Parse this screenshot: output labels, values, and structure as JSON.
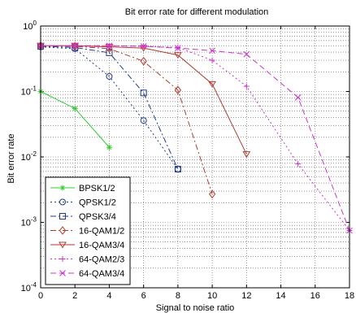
{
  "chart_data": {
    "type": "line",
    "title": "Bit error rate for different modulation",
    "xlabel": "Signal to noise ratio",
    "ylabel": "Bit error rate",
    "xlim": [
      0,
      18
    ],
    "ylim": [
      0.0001,
      1
    ],
    "yscale": "log",
    "grid": "major and minor, dotted",
    "legend_position": "bottom-left",
    "x_ticks": [
      "0",
      "2",
      "4",
      "6",
      "8",
      "10",
      "12",
      "14",
      "16",
      "18"
    ],
    "y_ticks": [
      {
        "base": "10",
        "exp": "0"
      },
      {
        "base": "10",
        "exp": "-1"
      },
      {
        "base": "10",
        "exp": "-2"
      },
      {
        "base": "10",
        "exp": "-3"
      },
      {
        "base": "10",
        "exp": "-4"
      }
    ],
    "series": [
      {
        "name": "BPSK1/2",
        "color": "#33cc33",
        "dash": "",
        "marker": "star",
        "x": [
          0,
          2,
          4
        ],
        "y": [
          0.1,
          0.055,
          0.014
        ]
      },
      {
        "name": "QPSK1/2",
        "color": "#1f3a93",
        "dash": "2 3",
        "marker": "circle",
        "x": [
          0,
          2,
          4,
          6,
          8
        ],
        "y": [
          0.48,
          0.45,
          0.17,
          0.036,
          0.0065
        ]
      },
      {
        "name": "QPSK3/4",
        "color": "#1f3a93",
        "dash": "7 3 2 3",
        "marker": "square",
        "x": [
          0,
          2,
          4,
          6,
          8
        ],
        "y": [
          0.49,
          0.47,
          0.39,
          0.095,
          0.0065
        ]
      },
      {
        "name": "16-QAM1/2",
        "color": "#b03a2e",
        "dash": "7 3 2 3",
        "marker": "diamond",
        "x": [
          0,
          2,
          4,
          6,
          8,
          10
        ],
        "y": [
          0.5,
          0.49,
          0.45,
          0.29,
          0.105,
          0.0027
        ]
      },
      {
        "name": "16-QAM3/4",
        "color": "#b03a2e",
        "dash": "",
        "marker": "triangle-down",
        "x": [
          0,
          2,
          4,
          6,
          8,
          10,
          12
        ],
        "y": [
          0.5,
          0.5,
          0.48,
          0.46,
          0.36,
          0.13,
          0.011
        ]
      },
      {
        "name": "64-QAM2/3",
        "color": "#cc33cc",
        "dash": "2 3",
        "marker": "plus",
        "x": [
          0,
          2,
          4,
          6,
          8,
          10,
          12,
          15,
          18
        ],
        "y": [
          0.5,
          0.5,
          0.5,
          0.49,
          0.47,
          0.3,
          0.12,
          0.0078,
          0.00075
        ]
      },
      {
        "name": "64-QAM3/4",
        "color": "#cc33cc",
        "dash": "7 4",
        "marker": "x",
        "x": [
          0,
          2,
          4,
          6,
          8,
          10,
          12,
          15,
          18
        ],
        "y": [
          0.5,
          0.5,
          0.5,
          0.49,
          0.46,
          0.42,
          0.37,
          0.081,
          0.00075
        ]
      }
    ]
  }
}
